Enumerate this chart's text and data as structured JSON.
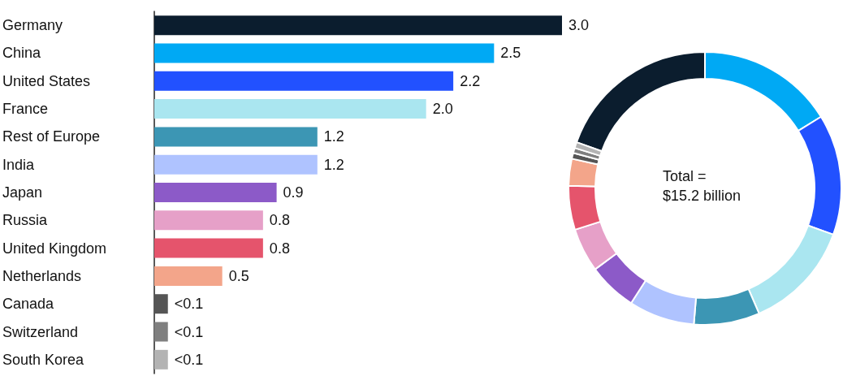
{
  "chart_data": [
    {
      "type": "bar",
      "orientation": "horizontal",
      "categories": [
        "Germany",
        "China",
        "United States",
        "France",
        "Rest of Europe",
        "India",
        "Japan",
        "Russia",
        "United Kingdom",
        "Netherlands",
        "Canada",
        "Switzerland",
        "South Korea"
      ],
      "values": [
        3.0,
        2.5,
        2.2,
        2.0,
        1.2,
        1.2,
        0.9,
        0.8,
        0.8,
        0.5,
        0.1,
        0.1,
        0.1
      ],
      "value_labels": [
        "3.0",
        "2.5",
        "2.2",
        "2.0",
        "1.2",
        "1.2",
        "0.9",
        "0.8",
        "0.8",
        "0.5",
        "<0.1",
        "<0.1",
        "<0.1"
      ],
      "colors": [
        "#0b1d2e",
        "#00a9f4",
        "#2251ff",
        "#aae6f0",
        "#3c96b4",
        "#afc3ff",
        "#8c5ac8",
        "#e6a0c8",
        "#e5546c",
        "#f3a58a",
        "#555555",
        "#7f7f7f",
        "#b3b3b3"
      ],
      "grid": false
    },
    {
      "type": "donut",
      "categories": [
        null,
        null,
        null,
        null,
        null,
        null,
        null,
        null,
        null,
        null,
        null,
        null,
        null
      ],
      "values": [
        19.5,
        16.2,
        14.3,
        13.0,
        7.8,
        7.8,
        5.8,
        5.2,
        5.2,
        3.2,
        0.7,
        0.6,
        0.7
      ],
      "colors": [
        "#0b1d2e",
        "#00a9f4",
        "#2251ff",
        "#aae6f0",
        "#3c96b4",
        "#afc3ff",
        "#8c5ac8",
        "#e6a0c8",
        "#e5546c",
        "#f3a58a",
        "#555555",
        "#7f7f7f",
        "#b3b3b3"
      ],
      "annotations": [
        "Total = $15.2 billion"
      ]
    }
  ]
}
